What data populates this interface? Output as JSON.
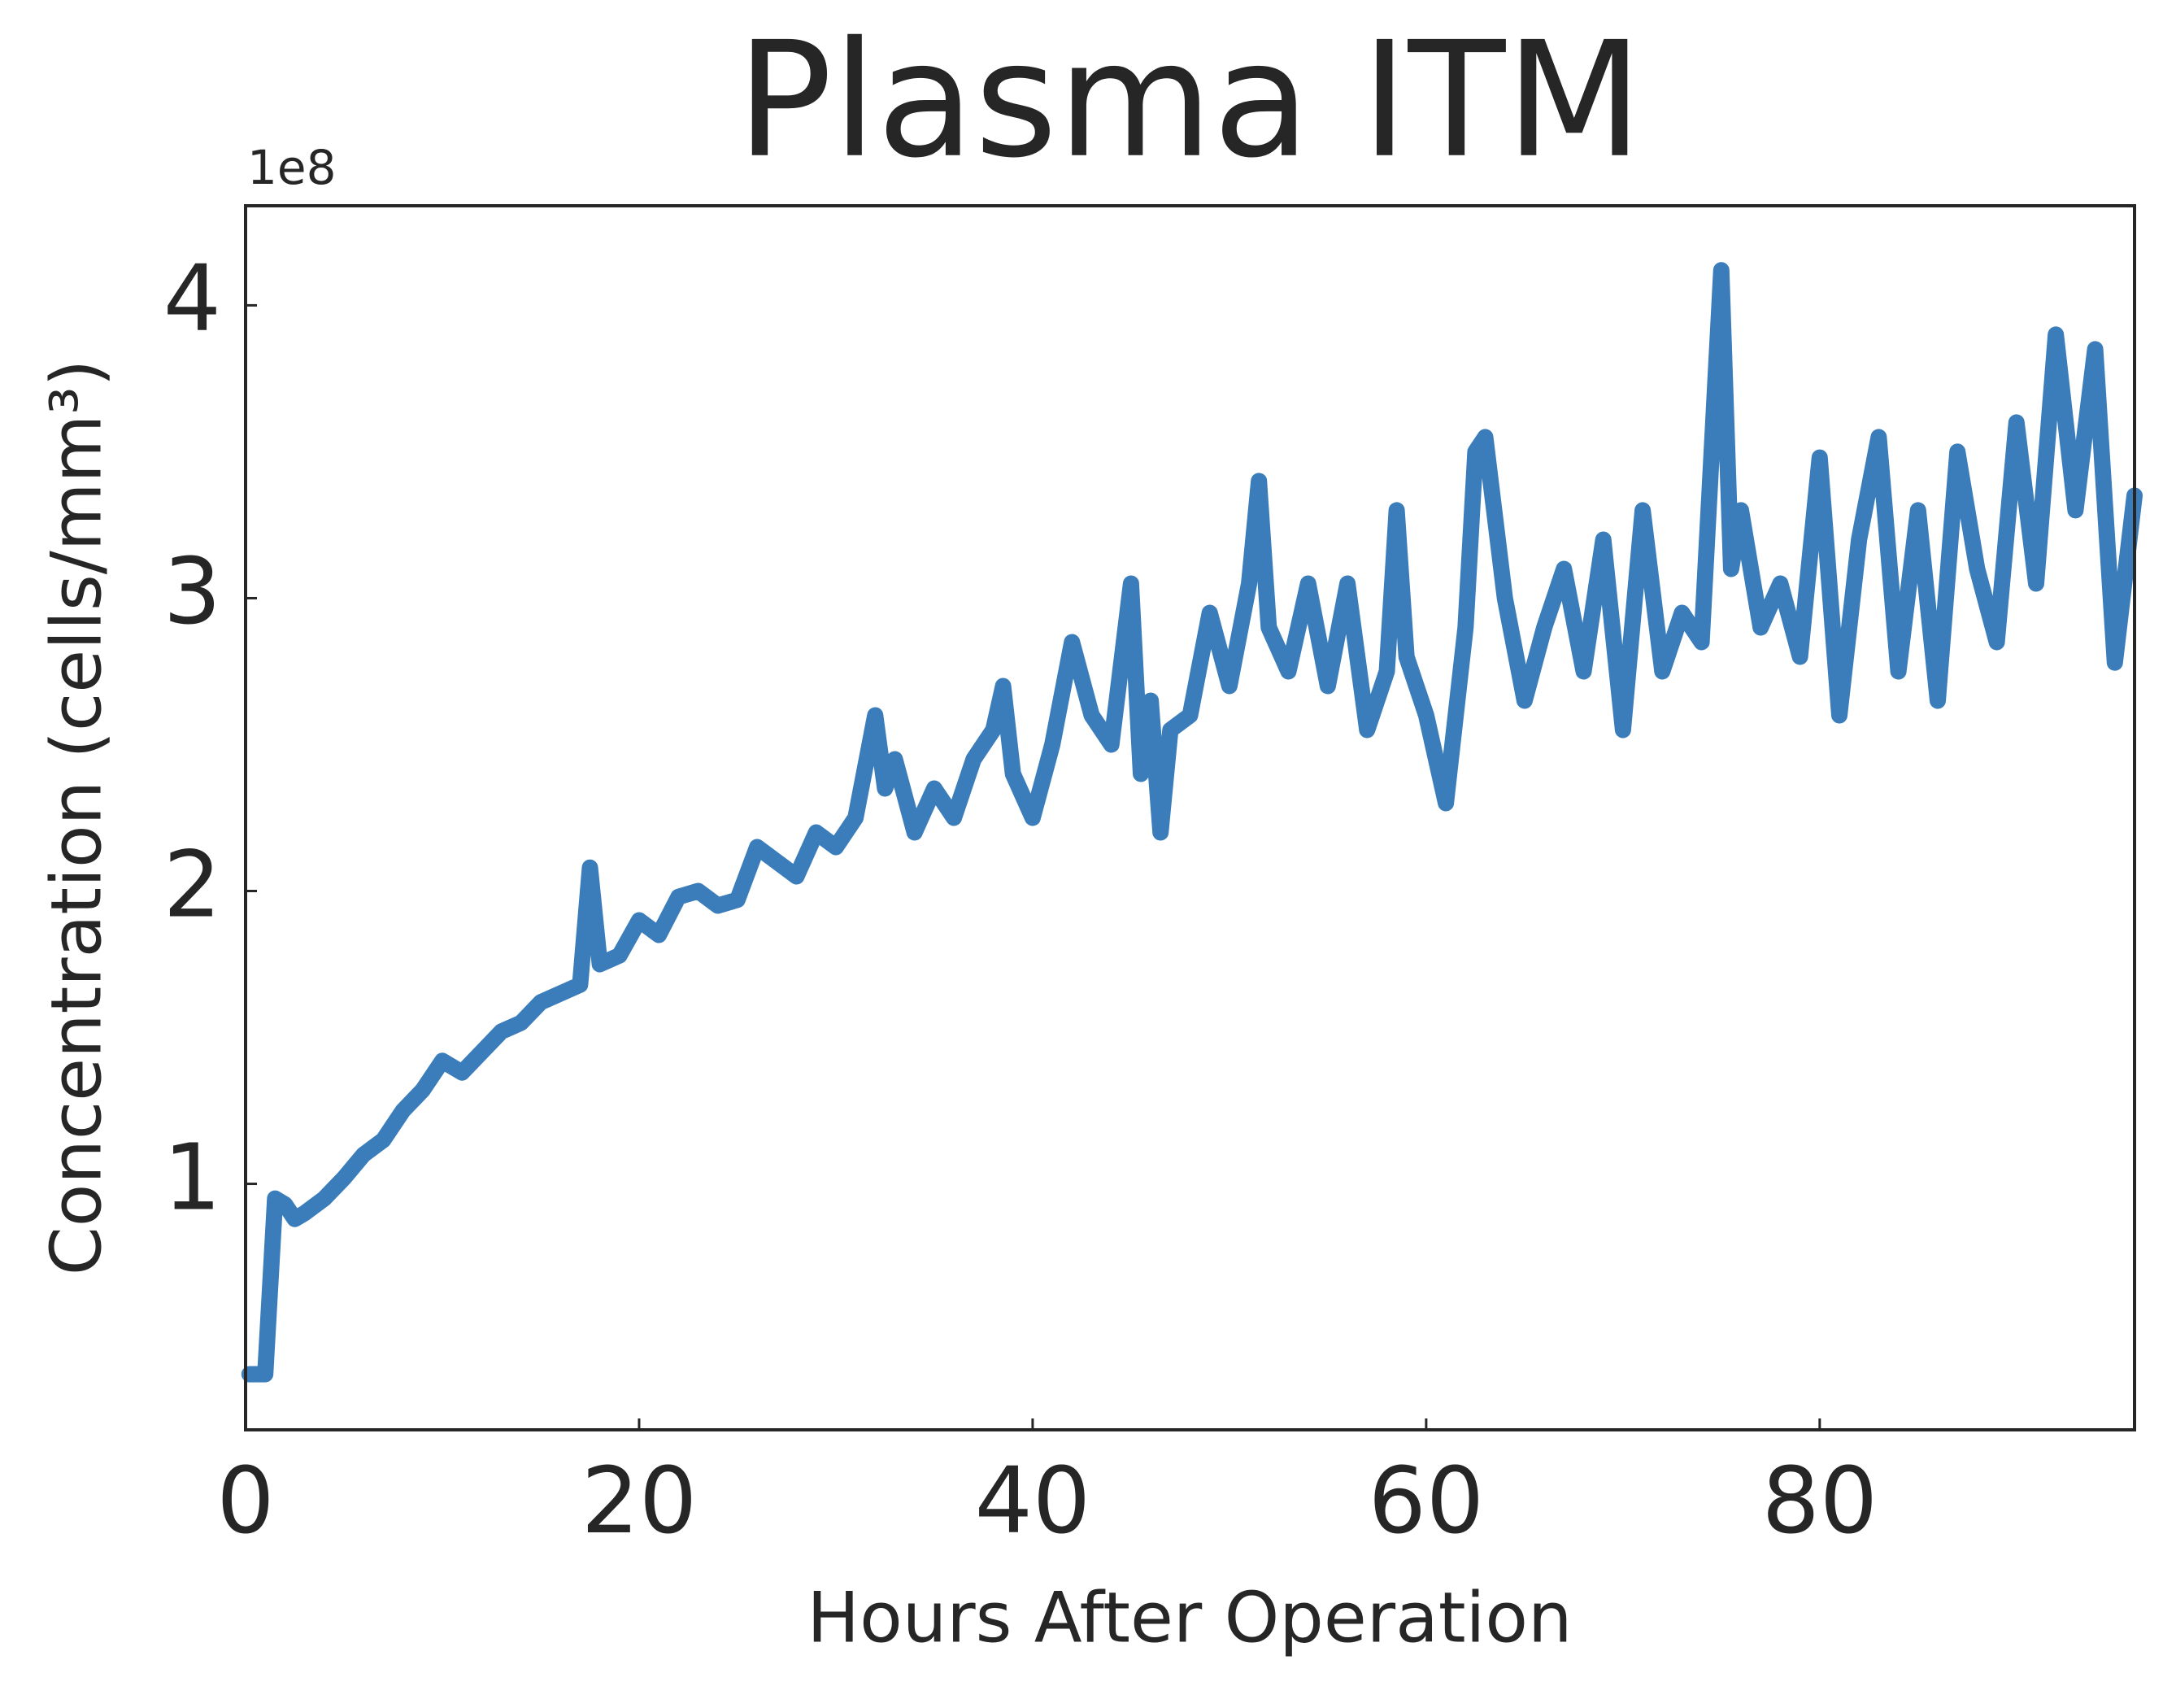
{
  "chart_data": {
    "type": "line",
    "title": "Plasma ITM",
    "x_label": "Hours After Operation",
    "y_label": "Concentration (cells/mm³)",
    "y_offset_label": "1e8",
    "x": [
      0.2,
      1,
      1.5,
      2,
      2.5,
      3,
      4,
      5,
      6,
      7,
      8,
      9,
      10,
      11,
      12,
      13,
      14,
      15,
      16,
      17,
      17.5,
      18,
      19,
      20,
      21,
      22,
      23,
      24,
      25,
      26,
      27,
      28,
      29,
      30,
      31,
      32,
      32.5,
      33,
      34,
      35,
      36,
      37,
      38,
      38.5,
      39,
      40,
      41,
      42,
      43,
      44,
      45,
      45.5,
      46,
      46.5,
      47,
      48,
      49,
      50,
      51,
      51.5,
      52,
      53,
      54,
      55,
      56,
      57,
      58,
      58.5,
      59,
      60,
      61,
      62,
      62.5,
      63,
      64,
      65,
      66,
      67,
      68,
      69,
      70,
      71,
      72,
      73,
      74,
      75,
      75.5,
      76,
      77,
      78,
      79,
      80,
      81,
      82,
      83,
      84,
      85,
      86,
      87,
      88,
      89,
      90,
      91,
      92,
      93,
      94,
      95,
      96
    ],
    "series": [
      {
        "name": "Plasma ITM",
        "color": "#3a7dba",
        "values": [
          0.35,
          0.35,
          0.95,
          0.93,
          0.88,
          0.9,
          0.95,
          1.02,
          1.1,
          1.15,
          1.25,
          1.32,
          1.42,
          1.38,
          1.45,
          1.52,
          1.55,
          1.62,
          1.65,
          1.68,
          2.08,
          1.75,
          1.78,
          1.9,
          1.85,
          1.98,
          2.0,
          1.95,
          1.97,
          2.15,
          2.1,
          2.05,
          2.2,
          2.15,
          2.25,
          2.6,
          2.35,
          2.45,
          2.2,
          2.35,
          2.25,
          2.45,
          2.55,
          2.7,
          2.4,
          2.25,
          2.5,
          2.85,
          2.6,
          2.5,
          3.05,
          2.4,
          2.65,
          2.2,
          2.55,
          2.6,
          2.95,
          2.7,
          3.05,
          3.4,
          2.9,
          2.75,
          3.05,
          2.7,
          3.05,
          2.55,
          2.75,
          3.3,
          2.8,
          2.6,
          2.3,
          2.9,
          3.5,
          3.55,
          3.0,
          2.65,
          2.9,
          3.1,
          2.75,
          3.2,
          2.55,
          3.3,
          2.75,
          2.95,
          2.85,
          4.12,
          3.1,
          3.3,
          2.9,
          3.05,
          2.8,
          3.48,
          2.6,
          3.2,
          3.55,
          2.75,
          3.3,
          2.65,
          3.5,
          3.1,
          2.85,
          3.6,
          3.05,
          3.9,
          3.3,
          3.85,
          2.78,
          3.35
        ]
      }
    ],
    "xlim": [
      0,
      96
    ],
    "ylim": [
      0.16,
      4.34
    ],
    "xticks": [
      0,
      20,
      40,
      60,
      80
    ],
    "yticks": [
      1,
      2,
      3,
      4
    ]
  }
}
